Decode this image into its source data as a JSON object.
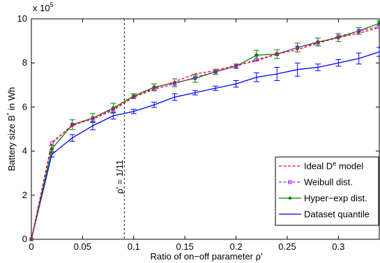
{
  "chart_data": {
    "type": "line",
    "xlabel": "Ratio of on−off parameter ρ'",
    "ylabel": "Battery size B* in Wh",
    "ylabel_parts": {
      "main": "Battery size B",
      "sup": "*",
      "rest": " in Wh"
    },
    "y_exponent": "x 10",
    "y_exponent_power": "5",
    "xlim": [
      0,
      0.34
    ],
    "ylim": [
      0,
      10
    ],
    "xticks": [
      0,
      0.05,
      0.1,
      0.15,
      0.2,
      0.25,
      0.3
    ],
    "xtick_labels": [
      "0",
      "0.05",
      "0.1",
      "0.15",
      "0.2",
      "0.25",
      "0.3"
    ],
    "yticks": [
      0,
      2,
      4,
      6,
      8,
      10
    ],
    "ytick_labels": [
      "0",
      "2",
      "4",
      "6",
      "8",
      "10"
    ],
    "grid": false,
    "legend_position": "bottom-right",
    "annotation": {
      "text": "ρ' = 1/11",
      "x": 0.0909
    },
    "series": [
      {
        "name": "Ideal D",
        "name_sup": "e",
        "name_rest": " model",
        "color": "#ff0000",
        "style": "dashed",
        "marker": "none",
        "x": [
          0,
          0.02,
          0.04,
          0.06,
          0.08,
          0.1,
          0.12,
          0.14,
          0.16,
          0.18,
          0.2,
          0.22,
          0.24,
          0.26,
          0.28,
          0.3,
          0.32,
          0.34
        ],
        "y": [
          0,
          4.4,
          5.15,
          5.5,
          5.9,
          6.45,
          6.85,
          7.15,
          7.5,
          7.65,
          7.9,
          8.1,
          8.4,
          8.6,
          8.9,
          9.15,
          9.35,
          9.6
        ]
      },
      {
        "name": "Weibull dist.",
        "color": "#a020f0",
        "style": "dashed",
        "marker": "square",
        "x": [
          0,
          0.02,
          0.04,
          0.06,
          0.08,
          0.1,
          0.12,
          0.14,
          0.16,
          0.18,
          0.2,
          0.22,
          0.24,
          0.26,
          0.28,
          0.3,
          0.32,
          0.34
        ],
        "y": [
          0,
          4.35,
          5.2,
          5.45,
          5.85,
          6.45,
          6.8,
          7.05,
          7.35,
          7.6,
          7.85,
          8.15,
          8.4,
          8.7,
          8.9,
          9.2,
          9.45,
          9.65
        ]
      },
      {
        "name": "Hyper−exp dist.",
        "color": "#008000",
        "style": "solid",
        "marker": "circle",
        "x": [
          0,
          0.02,
          0.04,
          0.06,
          0.08,
          0.1,
          0.12,
          0.14,
          0.16,
          0.18,
          0.2,
          0.22,
          0.24,
          0.26,
          0.28,
          0.3,
          0.32,
          0.34
        ],
        "y": [
          0,
          4.1,
          5.2,
          5.5,
          5.95,
          6.5,
          6.9,
          7.1,
          7.3,
          7.6,
          7.85,
          8.35,
          8.4,
          8.7,
          8.95,
          9.15,
          9.45,
          9.8
        ],
        "err": [
          0,
          0.15,
          0.22,
          0.2,
          0.22,
          0.1,
          0.15,
          0.18,
          0.18,
          0.12,
          0.1,
          0.22,
          0.2,
          0.2,
          0.18,
          0.18,
          0.15,
          0.1
        ]
      },
      {
        "name": "Dataset quantile",
        "color": "#0000ff",
        "style": "solid",
        "marker": "none",
        "x": [
          0,
          0.02,
          0.04,
          0.06,
          0.08,
          0.1,
          0.12,
          0.14,
          0.16,
          0.18,
          0.2,
          0.22,
          0.24,
          0.26,
          0.28,
          0.3,
          0.32,
          0.34
        ],
        "y": [
          0,
          3.85,
          4.6,
          5.15,
          5.6,
          5.8,
          6.1,
          6.45,
          6.65,
          6.85,
          7.05,
          7.35,
          7.5,
          7.7,
          7.8,
          8.0,
          8.2,
          8.5
        ],
        "err": [
          0,
          0.12,
          0.15,
          0.18,
          0.15,
          0.1,
          0.12,
          0.15,
          0.1,
          0.1,
          0.15,
          0.2,
          0.3,
          0.3,
          0.15,
          0.15,
          0.25,
          0.2
        ]
      }
    ]
  }
}
